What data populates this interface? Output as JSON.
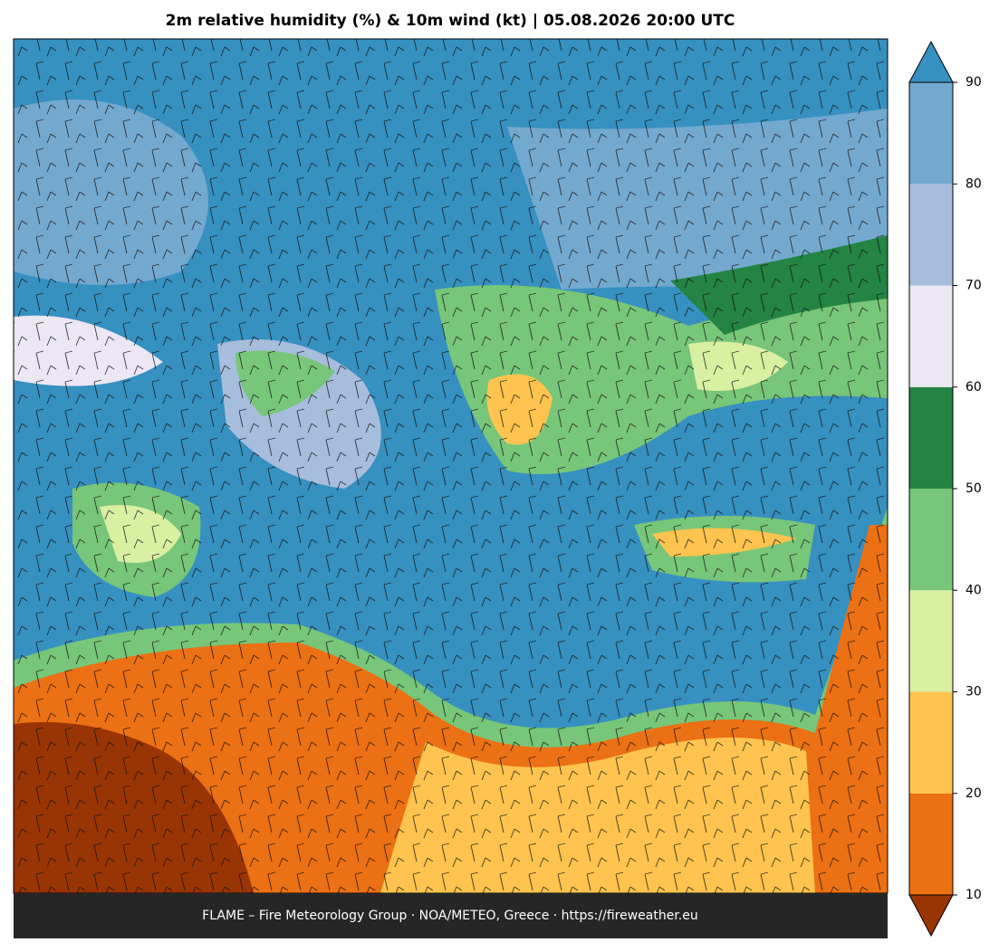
{
  "title": "2m relative humidity (%) & 10m wind (kt)  |  05.08.2026 20:00 UTC",
  "footer": "FLAME – Fire Meteorology Group · NOA/METEO, Greece · https://fireweather.eu",
  "colorbar": {
    "ticks": [
      10,
      20,
      30,
      40,
      50,
      60,
      70,
      80,
      90
    ],
    "colors": [
      "#ec7014",
      "#fec44f",
      "#d9f0a3",
      "#78c679",
      "#238443",
      "#ebe7f3",
      "#a6bddb",
      "#74a9cf"
    ],
    "under_color": "#993404",
    "over_color": "#3690c0"
  }
}
